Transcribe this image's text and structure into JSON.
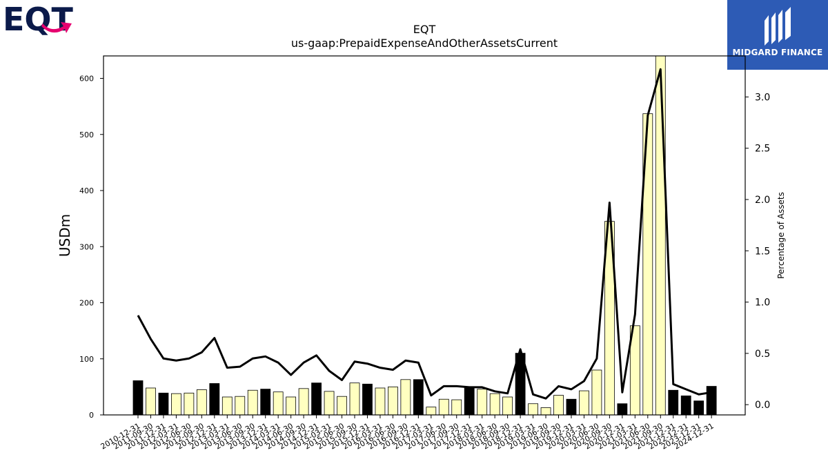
{
  "logos": {
    "left_text": "EQT",
    "right_text": "MIDGARD FINANCE"
  },
  "colors": {
    "bar_yearend": "#000000",
    "bar_quarter": "#ffffc0",
    "bar_edge": "#000000",
    "line": "#000000",
    "eqt_navy": "#0b1a4a",
    "eqt_pink": "#e6006f",
    "midgard_blue": "#2d5bb5"
  },
  "chart_data": {
    "type": "bar",
    "title": "EQT",
    "subtitle": "us-gaap:PrepaidExpenseAndOtherAssetsCurrent",
    "ylabel": "USDm",
    "y2label": "Percentage of Assets",
    "ylim": [
      0,
      640
    ],
    "y2lim": [
      -0.1,
      3.4
    ],
    "yticks": [
      0,
      100,
      200,
      300,
      400,
      500,
      600
    ],
    "y2ticks": [
      "0.0",
      "0.5",
      "1.0",
      "1.5",
      "2.0",
      "2.5",
      "3.0"
    ],
    "categories": [
      "2010-12-31",
      "2011-09-30",
      "2011-12-31",
      "2012-03-31",
      "2012-06-30",
      "2012-09-30",
      "2012-12-31",
      "2013-03-31",
      "2013-06-30",
      "2013-09-30",
      "2013-12-31",
      "2014-03-31",
      "2014-06-30",
      "2014-09-30",
      "2014-12-31",
      "2015-03-31",
      "2015-06-30",
      "2015-09-30",
      "2015-12-31",
      "2016-03-31",
      "2016-06-30",
      "2016-09-30",
      "2016-12-31",
      "2017-03-31",
      "2017-06-30",
      "2017-09-30",
      "2017-12-31",
      "2018-03-31",
      "2018-06-30",
      "2018-09-30",
      "2018-12-31",
      "2019-03-31",
      "2019-06-30",
      "2019-09-30",
      "2019-12-31",
      "2020-03-31",
      "2020-06-30",
      "2020-09-30",
      "2020-12-31",
      "2021-03-31",
      "2021-06-30",
      "2021-09-30",
      "2021-12-31",
      "2022-12-31",
      "2023-12-31",
      "2024-12-31"
    ],
    "series": [
      {
        "type": "bar",
        "values": [
          61,
          48,
          39,
          38,
          39,
          45,
          56,
          32,
          33,
          44,
          46,
          41,
          32,
          47,
          57,
          42,
          33,
          57,
          55,
          48,
          50,
          63,
          63,
          14,
          28,
          27,
          50,
          46,
          38,
          32,
          110,
          20,
          13,
          35,
          28,
          43,
          80,
          345,
          20,
          159,
          537,
          648,
          44,
          34,
          25,
          51
        ],
        "year_end": [
          true,
          false,
          true,
          false,
          false,
          false,
          true,
          false,
          false,
          false,
          true,
          false,
          false,
          false,
          true,
          false,
          false,
          false,
          true,
          false,
          false,
          false,
          true,
          false,
          false,
          false,
          true,
          false,
          false,
          false,
          true,
          false,
          false,
          false,
          true,
          false,
          false,
          false,
          true,
          false,
          false,
          false,
          true,
          true,
          true,
          true
        ]
      },
      {
        "type": "line",
        "axis": "right",
        "values": [
          0.87,
          0.64,
          0.45,
          0.43,
          0.45,
          0.51,
          0.65,
          0.36,
          0.37,
          0.45,
          0.47,
          0.41,
          0.29,
          0.41,
          0.48,
          0.33,
          0.24,
          0.42,
          0.4,
          0.36,
          0.34,
          0.43,
          0.41,
          0.09,
          0.18,
          0.18,
          0.17,
          0.17,
          0.13,
          0.11,
          0.54,
          0.1,
          0.06,
          0.18,
          0.15,
          0.23,
          0.45,
          1.97,
          0.12,
          0.88,
          2.82,
          3.27,
          0.2,
          0.15,
          0.1,
          0.12
        ]
      }
    ]
  }
}
